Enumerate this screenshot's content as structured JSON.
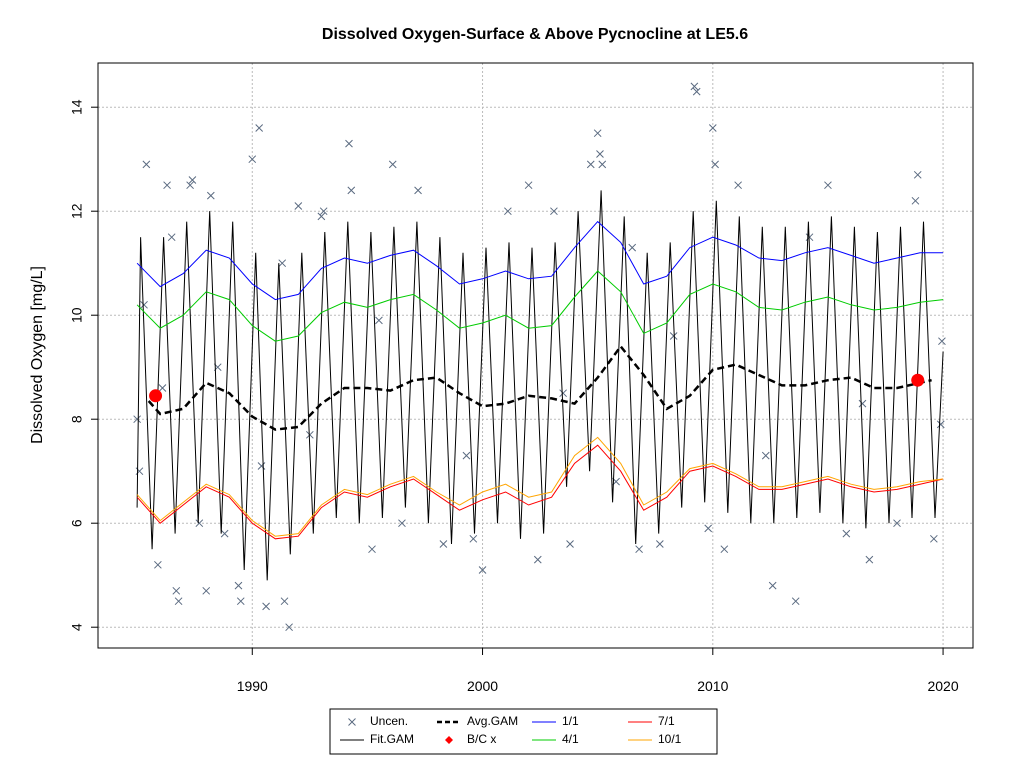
{
  "chart_data": {
    "type": "line",
    "title": "Dissolved Oxygen-Surface & Above Pycnocline at LE5.6",
    "ylabel": "Dissolved Oxygen [mg/L]",
    "xlim": [
      1983.3,
      2021.3
    ],
    "ylim": [
      3.6,
      14.85
    ],
    "xticks": [
      1990,
      2000,
      2010,
      2020
    ],
    "yticks": [
      4,
      6,
      8,
      10,
      12,
      14
    ],
    "grid": true,
    "series": [
      {
        "name": "Uncen.",
        "type": "scatter",
        "color": "#5a6a80",
        "x": [
          1985.0,
          1985.1,
          1985.4,
          1985.3,
          1985.9,
          1986.1,
          1986.3,
          1986.5,
          1986.8,
          1986.7,
          1987.3,
          1987.4,
          1987.7,
          1988.2,
          1988.0,
          1988.8,
          1989.5,
          1989.4,
          1990.0,
          1990.3,
          1990.6,
          1990.4,
          1991.6,
          1991.4,
          1991.3,
          1992.0,
          1993.0,
          1993.1,
          1994.2,
          1994.3,
          1995.2,
          1996.1,
          1996.5,
          1997.2,
          1998.3,
          1999.6,
          2000.0,
          2001.1,
          2002.0,
          2002.4,
          2003.1,
          2003.8,
          2004.7,
          2005.0,
          2005.1,
          2005.2,
          2005.8,
          2006.5,
          2006.8,
          2007.7,
          2009.2,
          2009.3,
          2009.8,
          2010.0,
          2010.1,
          2010.5,
          2011.1,
          2012.6,
          2013.6,
          2014.2,
          2015.0,
          2015.8,
          2016.8,
          2018.0,
          2018.9,
          2018.8,
          2019.6,
          2019.9,
          2019.95,
          1988.5,
          1992.5,
          1995.5,
          1999.3,
          2003.5,
          2008.3,
          2012.3,
          2016.5
        ],
        "values": [
          8.0,
          7.0,
          12.9,
          10.2,
          5.2,
          8.6,
          12.5,
          11.5,
          4.5,
          4.7,
          12.5,
          12.6,
          6.0,
          12.3,
          4.7,
          5.8,
          4.5,
          4.8,
          13.0,
          13.6,
          4.4,
          7.1,
          4.0,
          4.5,
          11.0,
          12.1,
          11.9,
          12.0,
          13.3,
          12.4,
          5.5,
          12.9,
          6.0,
          12.4,
          5.6,
          5.7,
          5.1,
          12.0,
          12.5,
          5.3,
          12.0,
          5.6,
          12.9,
          13.5,
          13.1,
          12.9,
          6.8,
          11.3,
          5.5,
          5.6,
          14.4,
          14.3,
          5.9,
          13.6,
          12.9,
          5.5,
          12.5,
          4.8,
          4.5,
          11.5,
          12.5,
          5.8,
          5.3,
          6.0,
          12.7,
          12.2,
          5.7,
          7.9,
          9.5,
          9.0,
          7.7,
          9.9,
          7.3,
          8.5,
          9.6,
          7.3,
          8.3
        ]
      },
      {
        "name": "Fit.GAM",
        "type": "line",
        "color": "#000000",
        "x": [
          1985.0,
          1985.15,
          1985.65,
          1986.15,
          1986.65,
          1987.15,
          1987.65,
          1988.15,
          1988.65,
          1989.15,
          1989.65,
          1990.15,
          1990.65,
          1991.15,
          1991.65,
          1992.15,
          1992.65,
          1993.15,
          1993.65,
          1994.15,
          1994.65,
          1995.15,
          1995.65,
          1996.15,
          1996.65,
          1997.15,
          1997.65,
          1998.15,
          1998.65,
          1999.15,
          1999.65,
          2000.15,
          2000.65,
          2001.15,
          2001.65,
          2002.15,
          2002.65,
          2003.15,
          2003.65,
          2004.15,
          2004.65,
          2005.15,
          2005.65,
          2006.15,
          2006.65,
          2007.15,
          2007.65,
          2008.15,
          2008.65,
          2009.15,
          2009.65,
          2010.15,
          2010.65,
          2011.15,
          2011.65,
          2012.15,
          2012.65,
          2013.15,
          2013.65,
          2014.15,
          2014.65,
          2015.15,
          2015.65,
          2016.15,
          2016.65,
          2017.15,
          2017.65,
          2018.15,
          2018.65,
          2019.15,
          2019.65,
          2020.0
        ],
        "values": [
          6.3,
          11.5,
          5.5,
          11.5,
          5.8,
          11.8,
          6.0,
          12.0,
          5.8,
          11.8,
          5.1,
          11.2,
          4.9,
          11.0,
          5.4,
          11.2,
          5.8,
          11.6,
          6.1,
          11.8,
          6.0,
          11.6,
          6.1,
          11.7,
          6.3,
          11.8,
          6.0,
          11.5,
          5.6,
          11.2,
          5.8,
          11.3,
          6.0,
          11.4,
          5.7,
          11.3,
          5.8,
          11.4,
          6.7,
          12.0,
          7.0,
          12.4,
          6.4,
          11.9,
          5.6,
          11.2,
          5.8,
          11.4,
          6.3,
          12.0,
          6.4,
          12.2,
          6.2,
          11.9,
          6.0,
          11.7,
          6.0,
          11.7,
          6.1,
          11.8,
          6.2,
          11.9,
          6.0,
          11.7,
          5.9,
          11.6,
          6.0,
          11.7,
          6.1,
          11.8,
          6.1,
          9.3
        ]
      },
      {
        "name": "Avg.GAM",
        "type": "dashed",
        "color": "#000000",
        "x": [
          1985.5,
          1986,
          1987,
          1988,
          1989,
          1990,
          1991,
          1992,
          1993,
          1994,
          1995,
          1996,
          1997,
          1998,
          1999,
          2000,
          2001,
          2002,
          2003,
          2004,
          2005,
          2006,
          2007,
          2008,
          2009,
          2010,
          2011,
          2012,
          2013,
          2014,
          2015,
          2016,
          2017,
          2018,
          2019,
          2019.5
        ],
        "values": [
          8.35,
          8.1,
          8.2,
          8.7,
          8.5,
          8.05,
          7.8,
          7.85,
          8.3,
          8.6,
          8.6,
          8.55,
          8.75,
          8.8,
          8.5,
          8.25,
          8.3,
          8.45,
          8.4,
          8.3,
          8.8,
          9.4,
          8.85,
          8.2,
          8.45,
          8.95,
          9.05,
          8.85,
          8.65,
          8.65,
          8.75,
          8.8,
          8.6,
          8.6,
          8.7,
          8.75
        ]
      },
      {
        "name": "B/C x",
        "type": "points",
        "color": "#ff0000",
        "x": [
          1985.8,
          2018.9
        ],
        "values": [
          8.45,
          8.75
        ]
      },
      {
        "name": "1/1",
        "type": "line",
        "color": "#0000ff",
        "x": [
          1985,
          1986,
          1987,
          1988,
          1989,
          1990,
          1991,
          1992,
          1993,
          1994,
          1995,
          1996,
          1997,
          1998,
          1999,
          2000,
          2001,
          2002,
          2003,
          2004,
          2005,
          2006,
          2007,
          2008,
          2009,
          2010,
          2011,
          2012,
          2013,
          2014,
          2015,
          2016,
          2017,
          2018,
          2019,
          2020
        ],
        "values": [
          11.0,
          10.55,
          10.8,
          11.25,
          11.1,
          10.6,
          10.3,
          10.4,
          10.9,
          11.1,
          11.0,
          11.15,
          11.25,
          10.95,
          10.6,
          10.7,
          10.85,
          10.7,
          10.75,
          11.3,
          11.8,
          11.4,
          10.6,
          10.75,
          11.3,
          11.5,
          11.35,
          11.1,
          11.05,
          11.2,
          11.3,
          11.15,
          11.0,
          11.1,
          11.2,
          11.2
        ]
      },
      {
        "name": "4/1",
        "type": "line",
        "color": "#00cc00",
        "x": [
          1985,
          1986,
          1987,
          1988,
          1989,
          1990,
          1991,
          1992,
          1993,
          1994,
          1995,
          1996,
          1997,
          1998,
          1999,
          2000,
          2001,
          2002,
          2003,
          2004,
          2005,
          2006,
          2007,
          2008,
          2009,
          2010,
          2011,
          2012,
          2013,
          2014,
          2015,
          2016,
          2017,
          2018,
          2019,
          2020
        ],
        "values": [
          10.2,
          9.75,
          10.0,
          10.45,
          10.3,
          9.8,
          9.5,
          9.6,
          10.05,
          10.25,
          10.15,
          10.3,
          10.4,
          10.1,
          9.75,
          9.85,
          10.0,
          9.75,
          9.8,
          10.35,
          10.85,
          10.45,
          9.65,
          9.85,
          10.4,
          10.6,
          10.45,
          10.15,
          10.1,
          10.25,
          10.35,
          10.2,
          10.1,
          10.15,
          10.25,
          10.3
        ]
      },
      {
        "name": "7/1",
        "type": "line",
        "color": "#ff0000",
        "x": [
          1985,
          1986,
          1987,
          1988,
          1989,
          1990,
          1991,
          1992,
          1993,
          1994,
          1995,
          1996,
          1997,
          1998,
          1999,
          2000,
          2001,
          2002,
          2003,
          2004,
          2005,
          2006,
          2007,
          2008,
          2009,
          2010,
          2011,
          2012,
          2013,
          2014,
          2015,
          2016,
          2017,
          2018,
          2019,
          2020
        ],
        "values": [
          6.5,
          6.0,
          6.35,
          6.7,
          6.5,
          6.0,
          5.7,
          5.75,
          6.3,
          6.6,
          6.5,
          6.7,
          6.85,
          6.55,
          6.25,
          6.45,
          6.6,
          6.35,
          6.5,
          7.15,
          7.5,
          7.0,
          6.25,
          6.5,
          7.0,
          7.1,
          6.9,
          6.65,
          6.65,
          6.75,
          6.85,
          6.7,
          6.6,
          6.65,
          6.75,
          6.85
        ]
      },
      {
        "name": "10/1",
        "type": "line",
        "color": "#ffa500",
        "x": [
          1985,
          1986,
          1987,
          1988,
          1989,
          1990,
          1991,
          1992,
          1993,
          1994,
          1995,
          1996,
          1997,
          1998,
          1999,
          2000,
          2001,
          2002,
          2003,
          2004,
          2005,
          2006,
          2007,
          2008,
          2009,
          2010,
          2011,
          2012,
          2013,
          2014,
          2015,
          2016,
          2017,
          2018,
          2019,
          2020
        ],
        "values": [
          6.55,
          6.05,
          6.4,
          6.75,
          6.55,
          6.05,
          5.75,
          5.8,
          6.35,
          6.65,
          6.55,
          6.75,
          6.9,
          6.6,
          6.35,
          6.6,
          6.75,
          6.5,
          6.6,
          7.3,
          7.65,
          7.15,
          6.35,
          6.6,
          7.05,
          7.15,
          6.95,
          6.7,
          6.7,
          6.8,
          6.9,
          6.75,
          6.65,
          6.7,
          6.8,
          6.85
        ]
      }
    ]
  }
}
